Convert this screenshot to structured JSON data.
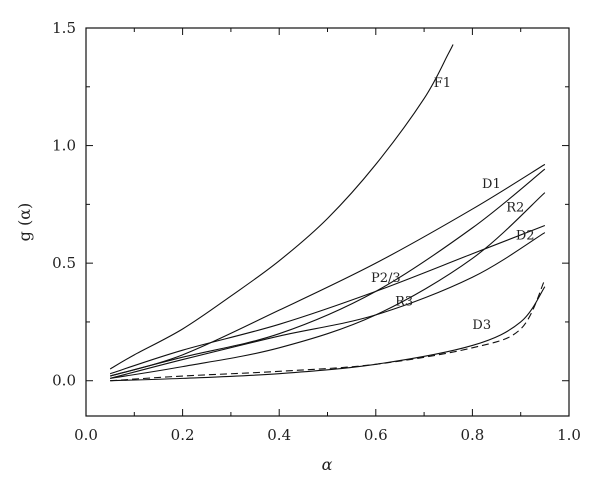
{
  "chart_data": {
    "type": "line",
    "xlabel": "α",
    "ylabel": "g (α)",
    "xlim": [
      0.0,
      1.0
    ],
    "ylim": [
      -0.15,
      1.5
    ],
    "x_ticks": [
      "0.0",
      "0.2",
      "0.4",
      "0.6",
      "0.8",
      "1.0"
    ],
    "x_tick_values": [
      0.0,
      0.2,
      0.4,
      0.6,
      0.8,
      1.0
    ],
    "y_ticks": [
      "0.0",
      "0.5",
      "1.0",
      "1.5"
    ],
    "y_tick_values": [
      0.0,
      0.5,
      1.0,
      1.5
    ],
    "grid": false,
    "series": [
      {
        "name": "F1",
        "dash": "solid",
        "x": [
          0.05,
          0.1,
          0.2,
          0.3,
          0.4,
          0.5,
          0.6,
          0.7,
          0.75,
          0.76
        ],
        "y": [
          0.05,
          0.11,
          0.22,
          0.36,
          0.51,
          0.69,
          0.92,
          1.2,
          1.39,
          1.43
        ]
      },
      {
        "name": "D1",
        "dash": "solid",
        "x": [
          0.05,
          0.2,
          0.4,
          0.6,
          0.8,
          0.95
        ],
        "y": [
          0.02,
          0.11,
          0.3,
          0.5,
          0.73,
          0.92
        ]
      },
      {
        "name": "R2",
        "dash": "solid",
        "x": [
          0.05,
          0.2,
          0.4,
          0.6,
          0.8,
          0.95
        ],
        "y": [
          0.02,
          0.1,
          0.2,
          0.38,
          0.65,
          0.9
        ]
      },
      {
        "name": "P2/3",
        "dash": "solid",
        "x": [
          0.05,
          0.2,
          0.4,
          0.6,
          0.8,
          0.95
        ],
        "y": [
          0.03,
          0.13,
          0.24,
          0.38,
          0.54,
          0.66
        ]
      },
      {
        "name": "R3",
        "dash": "solid",
        "x": [
          0.05,
          0.2,
          0.4,
          0.6,
          0.8,
          0.95
        ],
        "y": [
          0.01,
          0.06,
          0.14,
          0.28,
          0.52,
          0.8
        ]
      },
      {
        "name": "D2",
        "dash": "solid",
        "x": [
          0.05,
          0.2,
          0.4,
          0.6,
          0.8,
          0.95
        ],
        "y": [
          0.01,
          0.09,
          0.19,
          0.28,
          0.44,
          0.63
        ]
      },
      {
        "name": "D3",
        "dash": "solid",
        "x": [
          0.05,
          0.2,
          0.4,
          0.6,
          0.8,
          0.9,
          0.95
        ],
        "y": [
          0.0,
          0.01,
          0.03,
          0.07,
          0.15,
          0.25,
          0.4
        ]
      },
      {
        "name": "",
        "dash": "dashed",
        "x": [
          0.05,
          0.2,
          0.4,
          0.6,
          0.8,
          0.9,
          0.95
        ],
        "y": [
          0.0,
          0.02,
          0.04,
          0.07,
          0.14,
          0.22,
          0.43
        ]
      }
    ],
    "labels": [
      {
        "text": "F1",
        "x": 0.72,
        "y": 1.25
      },
      {
        "text": "D1",
        "x": 0.82,
        "y": 0.82
      },
      {
        "text": "R2",
        "x": 0.87,
        "y": 0.72
      },
      {
        "text": "D2",
        "x": 0.89,
        "y": 0.6
      },
      {
        "text": "P2/3",
        "x": 0.59,
        "y": 0.42
      },
      {
        "text": "R3",
        "x": 0.64,
        "y": 0.32
      },
      {
        "text": "D3",
        "x": 0.8,
        "y": 0.22
      }
    ]
  }
}
